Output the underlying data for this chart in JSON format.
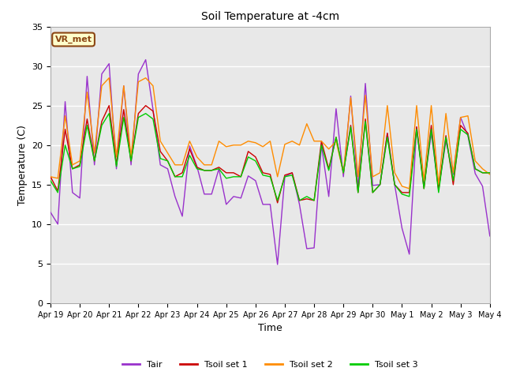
{
  "title": "Soil Temperature at -4cm",
  "xlabel": "Time",
  "ylabel": "Temperature (C)",
  "ylim": [
    0,
    35
  ],
  "yticks": [
    0,
    5,
    10,
    15,
    20,
    25,
    30,
    35
  ],
  "figure_bg": "#ffffff",
  "plot_bg": "#e8e8e8",
  "grid_color": "#ffffff",
  "annotation_text": "VR_met",
  "annotation_bg": "#ffffcc",
  "annotation_border": "#8B4513",
  "colors": {
    "Tair": "#9932CC",
    "Tsoil1": "#CC0000",
    "Tsoil2": "#FF8C00",
    "Tsoil3": "#00CC00"
  },
  "xtick_labels": [
    "Apr 19",
    "Apr 20",
    "Apr 21",
    "Apr 22",
    "Apr 23",
    "Apr 24",
    "Apr 25",
    "Apr 26",
    "Apr 27",
    "Apr 28",
    "Apr 29",
    "Apr 30",
    "May 1",
    "May 2",
    "May 3",
    "May 4"
  ],
  "legend_labels": [
    "Tair",
    "Tsoil set 1",
    "Tsoil set 2",
    "Tsoil set 3"
  ],
  "Tair": [
    11.5,
    10.0,
    25.5,
    14.0,
    13.3,
    28.7,
    17.5,
    29.0,
    30.3,
    17.0,
    27.5,
    17.5,
    29.0,
    30.8,
    24.5,
    17.5,
    17.0,
    13.5,
    11.0,
    19.9,
    17.3,
    13.8,
    13.8,
    17.0,
    12.5,
    13.5,
    13.3,
    16.1,
    15.5,
    12.5,
    12.5,
    4.9,
    16.0,
    16.5,
    12.5,
    6.9,
    7.0,
    20.0,
    13.5,
    24.6,
    16.0,
    26.2,
    14.5,
    27.8,
    14.9,
    15.0,
    21.5,
    15.0,
    9.5,
    6.2,
    22.3,
    14.8,
    21.5,
    14.5,
    20.5,
    16.3,
    23.5,
    21.2,
    16.4,
    14.8,
    8.5
  ],
  "Tsoil1": [
    16.0,
    14.2,
    22.0,
    17.0,
    17.5,
    23.3,
    18.0,
    23.0,
    25.0,
    17.5,
    24.5,
    18.0,
    24.0,
    25.0,
    24.3,
    19.2,
    18.0,
    16.0,
    16.5,
    19.5,
    17.2,
    16.8,
    16.8,
    17.2,
    16.5,
    16.5,
    16.0,
    19.2,
    18.5,
    16.5,
    16.3,
    12.7,
    16.2,
    16.5,
    13.0,
    13.2,
    13.0,
    20.5,
    17.0,
    21.0,
    16.5,
    22.5,
    14.0,
    23.3,
    14.0,
    15.0,
    21.5,
    15.0,
    14.0,
    14.0,
    22.3,
    14.5,
    22.5,
    14.3,
    21.2,
    15.0,
    22.5,
    21.5,
    17.0,
    16.5,
    16.5
  ],
  "Tsoil2": [
    16.0,
    15.8,
    23.7,
    17.5,
    18.0,
    26.7,
    19.0,
    27.5,
    28.5,
    18.5,
    27.5,
    18.5,
    28.0,
    28.5,
    27.5,
    20.5,
    19.0,
    17.5,
    17.5,
    20.5,
    18.5,
    17.5,
    17.5,
    20.5,
    19.8,
    20.0,
    20.0,
    20.5,
    20.3,
    19.8,
    20.5,
    16.0,
    20.1,
    20.5,
    20.0,
    22.7,
    20.5,
    20.5,
    19.5,
    20.5,
    16.5,
    26.0,
    16.0,
    26.3,
    16.0,
    16.5,
    25.0,
    16.5,
    14.8,
    14.5,
    25.0,
    15.5,
    25.0,
    15.0,
    24.0,
    16.5,
    23.5,
    23.7,
    18.0,
    17.0,
    16.3
  ],
  "Tsoil3": [
    15.5,
    14.0,
    20.0,
    17.0,
    17.3,
    22.5,
    18.0,
    22.5,
    24.0,
    17.3,
    23.5,
    18.0,
    23.5,
    24.0,
    23.3,
    18.3,
    18.0,
    16.0,
    16.0,
    18.7,
    17.0,
    16.8,
    16.8,
    17.0,
    15.8,
    16.0,
    16.0,
    18.5,
    18.0,
    16.2,
    16.0,
    13.0,
    16.0,
    16.2,
    13.0,
    13.5,
    13.0,
    20.0,
    16.8,
    21.0,
    16.5,
    22.3,
    14.0,
    23.0,
    14.0,
    15.0,
    21.0,
    15.0,
    13.8,
    13.5,
    22.0,
    14.5,
    22.0,
    14.0,
    21.0,
    15.5,
    22.0,
    21.3,
    17.0,
    16.5,
    16.5
  ]
}
